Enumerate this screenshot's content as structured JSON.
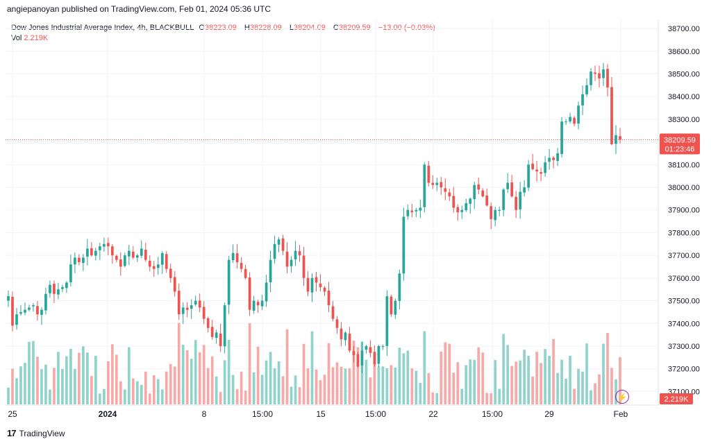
{
  "header": {
    "published_text": "angiepanoyan published on TradingView.com, Feb 01, 2024 05:36 UTC"
  },
  "legend": {
    "symbol": "Dow Jones Industrial Average Index, 4h, BLACKBULL",
    "open_label": "O",
    "open": "38223.09",
    "high_label": "H",
    "high": "38228.09",
    "low_label": "L",
    "low": "38204.09",
    "close_label": "C",
    "close": "38209.59",
    "change": "−13.00 (−0.03%)",
    "vol_label": "Vol",
    "vol_value": "2.219K"
  },
  "price_tag": {
    "price": "38209.59",
    "countdown": "01:23:46"
  },
  "volume_tag": {
    "value": "2.219K"
  },
  "footer": {
    "brand": "TradingView",
    "logo_icon": "tradingview-logo-icon"
  },
  "colors": {
    "up": "#26a69a",
    "down": "#ef5350",
    "vol_up": "#8fd3cb",
    "vol_down": "#f6a9a7",
    "grid": "#f0f3fa",
    "bolt": "#9c27b0"
  },
  "chart_data": {
    "type": "candlestick",
    "y_axis": {
      "ylim": [
        37040,
        38740
      ],
      "ticks": [
        38700,
        38600,
        38500,
        38400,
        38300,
        38200,
        38100,
        38000,
        37900,
        37800,
        37700,
        37600,
        37500,
        37400,
        37300,
        37200,
        37100
      ]
    },
    "x_ticks": [
      "25",
      "2024",
      "8",
      "15:00",
      "15",
      "15:00",
      "22",
      "15:00",
      "29",
      "Feb"
    ],
    "closes": [
      37520,
      37390,
      37440,
      37450,
      37460,
      37470,
      37480,
      37440,
      37460,
      37530,
      37570,
      37530,
      37550,
      37560,
      37580,
      37660,
      37690,
      37670,
      37690,
      37730,
      37700,
      37720,
      37740,
      37750,
      37740,
      37700,
      37680,
      37650,
      37700,
      37720,
      37690,
      37700,
      37730,
      37680,
      37650,
      37640,
      37660,
      37710,
      37640,
      37600,
      37540,
      37440,
      37470,
      37460,
      37480,
      37500,
      37470,
      37420,
      37380,
      37340,
      37360,
      37300,
      37480,
      37680,
      37710,
      37670,
      37640,
      37600,
      37460,
      37500,
      37480,
      37500,
      37580,
      37680,
      37750,
      37770,
      37720,
      37650,
      37680,
      37720,
      37700,
      37600,
      37540,
      37600,
      37580,
      37560,
      37540,
      37480,
      37420,
      37380,
      37330,
      37360,
      37280,
      37260,
      37210,
      37280,
      37300,
      37270,
      37220,
      37300,
      37300,
      37520,
      37440,
      37500,
      37620,
      37870,
      37900,
      37890,
      37900,
      37910,
      38100,
      38020,
      38010,
      38020,
      38000,
      37980,
      37960,
      37910,
      37890,
      37900,
      37930,
      37950,
      38010,
      37990,
      37960,
      37920,
      37860,
      37900,
      37900,
      37990,
      38020,
      37960,
      37900,
      37980,
      38000,
      38100,
      38080,
      38070,
      38060,
      38110,
      38130,
      38120,
      38150,
      38290,
      38290,
      38310,
      38280,
      38360,
      38410,
      38450,
      38510,
      38500,
      38480,
      38520,
      38440,
      38190,
      38230,
      38209.59
    ],
    "volume_note": "Volume bars colored by candle direction; last bar 2.219K"
  }
}
